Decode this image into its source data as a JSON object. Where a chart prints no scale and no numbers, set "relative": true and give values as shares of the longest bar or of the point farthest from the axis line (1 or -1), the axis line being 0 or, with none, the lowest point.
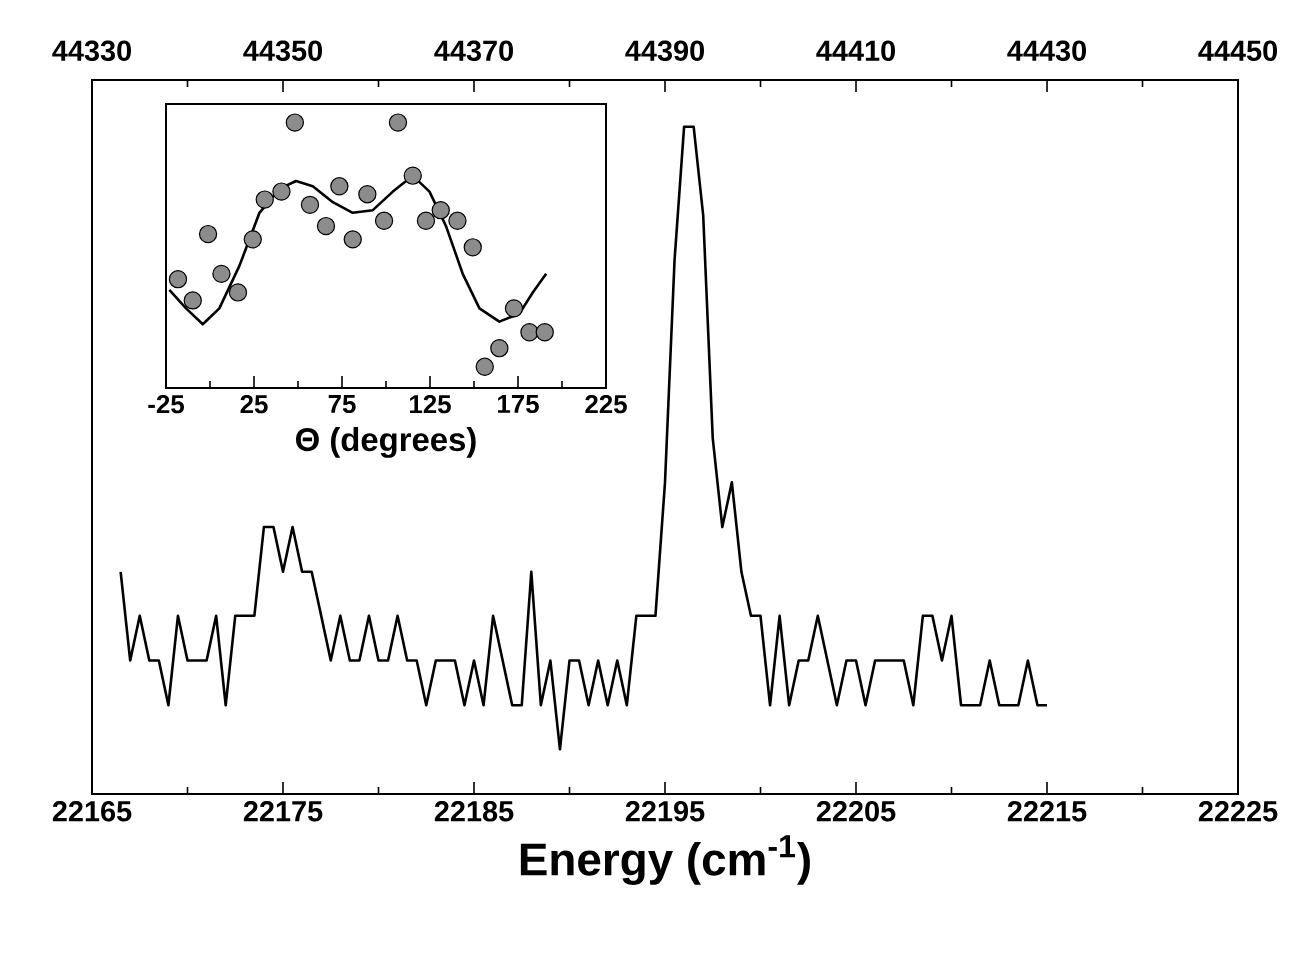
{
  "chart_data": [
    {
      "type": "line",
      "xlabel": "Energy (cm$^{-1}$)",
      "relative": true,
      "color": "#000000",
      "xlim": [
        22165,
        22225
      ],
      "xticks": [
        22165,
        22175,
        22185,
        22195,
        22205,
        22215,
        22225
      ],
      "x2lim": [
        44330,
        44450
      ],
      "x2ticks": [
        44330,
        44350,
        44370,
        44390,
        44410,
        44430,
        44450
      ],
      "x": [
        22166.5,
        22167,
        22167.5,
        22168,
        22168.5,
        22169,
        22169.5,
        22170,
        22170.5,
        22171,
        22171.5,
        22172,
        22172.5,
        22173,
        22173.5,
        22174,
        22174.5,
        22175,
        22175.5,
        22176,
        22176.5,
        22177,
        22177.5,
        22178,
        22178.5,
        22179,
        22179.5,
        22180,
        22180.5,
        22181,
        22181.5,
        22182,
        22182.5,
        22183,
        22183.5,
        22184,
        22184.5,
        22185,
        22185.5,
        22186,
        22186.5,
        22187,
        22187.5,
        22188,
        22188.5,
        22189,
        22189.5,
        22190,
        22190.5,
        22191,
        22191.5,
        22192,
        22192.5,
        22193,
        22193.5,
        22194,
        22194.5,
        22195,
        22195.5,
        22196,
        22196.5,
        22197,
        22197.5,
        22198,
        22198.5,
        22199,
        22199.5,
        22200,
        22200.5,
        22201,
        22201.5,
        22202,
        22202.5,
        22203,
        22203.5,
        22204,
        22204.5,
        22205,
        22205.5,
        22206,
        22206.5,
        22207,
        22207.5,
        22208,
        22208.5,
        22209,
        22209.5,
        22210,
        22210.5,
        22211,
        22211.5,
        22212,
        22212.5,
        22213,
        22213.5,
        22214,
        22214.5,
        22215
      ],
      "values": [
        0.333,
        0.2,
        0.267,
        0.2,
        0.2,
        0.133,
        0.267,
        0.2,
        0.2,
        0.2,
        0.267,
        0.133,
        0.267,
        0.267,
        0.267,
        0.4,
        0.4,
        0.333,
        0.4,
        0.333,
        0.333,
        0.267,
        0.2,
        0.267,
        0.2,
        0.2,
        0.267,
        0.2,
        0.2,
        0.267,
        0.2,
        0.2,
        0.133,
        0.2,
        0.2,
        0.2,
        0.133,
        0.2,
        0.133,
        0.267,
        0.2,
        0.133,
        0.133,
        0.333,
        0.133,
        0.2,
        0.067,
        0.2,
        0.2,
        0.133,
        0.2,
        0.133,
        0.2,
        0.133,
        0.267,
        0.267,
        0.267,
        0.467,
        0.8,
        1,
        1,
        0.867,
        0.533,
        0.4,
        0.467,
        0.333,
        0.267,
        0.267,
        0.133,
        0.267,
        0.133,
        0.2,
        0.2,
        0.267,
        0.2,
        0.133,
        0.2,
        0.2,
        0.133,
        0.2,
        0.2,
        0.2,
        0.2,
        0.133,
        0.267,
        0.267,
        0.2,
        0.267,
        0.133,
        0.133,
        0.133,
        0.2,
        0.133,
        0.133,
        0.133,
        0.2,
        0.133,
        0.133
      ]
    },
    {
      "type": "scatter",
      "xlabel": "Θ (degrees)",
      "relative": true,
      "xlim": [
        -25,
        225
      ],
      "xticks": [
        -25,
        25,
        75,
        125,
        175,
        225
      ],
      "series": [
        {
          "type": "scatter",
          "color": "#8c8c8c",
          "marker": "circle",
          "x": [
            -18.2,
            -9.8,
            -1.1,
            6.5,
            15.9,
            24.3,
            31.1,
            40.6,
            48.2,
            56.8,
            65.9,
            73.5,
            81.1,
            89.4,
            98.9,
            106.8,
            115.2,
            122.7,
            131.1,
            140.6,
            149.3,
            156.1,
            164.4,
            172.7,
            181.5,
            190.2
          ],
          "values": [
            0.41,
            0.33,
            0.58,
            0.43,
            0.36,
            0.56,
            0.71,
            0.74,
            1.0,
            0.69,
            0.61,
            0.76,
            0.56,
            0.73,
            0.63,
            1.0,
            0.8,
            0.63,
            0.67,
            0.63,
            0.53,
            0.08,
            0.15,
            0.3,
            0.21,
            0.21
          ]
        },
        {
          "type": "line",
          "color": "#000000",
          "x": [
            -23.1,
            -13.6,
            -4.1,
            5.3,
            16.7,
            28.1,
            39.4,
            48.9,
            58.4,
            69.8,
            81.1,
            92.5,
            103.9,
            115.2,
            124.7,
            134.1,
            143.6,
            153.1,
            164.4,
            175.8,
            183.4,
            191.0
          ],
          "values": [
            0.37,
            0.3,
            0.24,
            0.3,
            0.46,
            0.66,
            0.75,
            0.78,
            0.76,
            0.7,
            0.66,
            0.67,
            0.74,
            0.8,
            0.74,
            0.61,
            0.43,
            0.3,
            0.25,
            0.28,
            0.36,
            0.43
          ]
        }
      ]
    }
  ]
}
